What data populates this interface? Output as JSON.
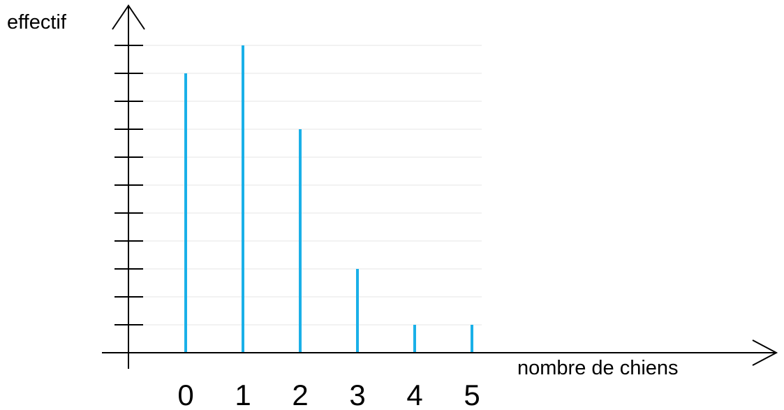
{
  "chart_data": {
    "type": "bar",
    "categories": [
      "0",
      "1",
      "2",
      "3",
      "4",
      "5"
    ],
    "values": [
      10,
      11,
      8,
      3,
      1,
      1
    ],
    "xlabel": "nombre de chiens",
    "ylabel": "effectif",
    "ylim": [
      0,
      11
    ],
    "y_tick_step": 1,
    "y_tick_labels_shown": false,
    "grid": true,
    "bar_style": "thin-stick",
    "colors": {
      "bars": "#1ab0e8",
      "axes": "#000000",
      "grid": "#e6e6e6"
    }
  }
}
